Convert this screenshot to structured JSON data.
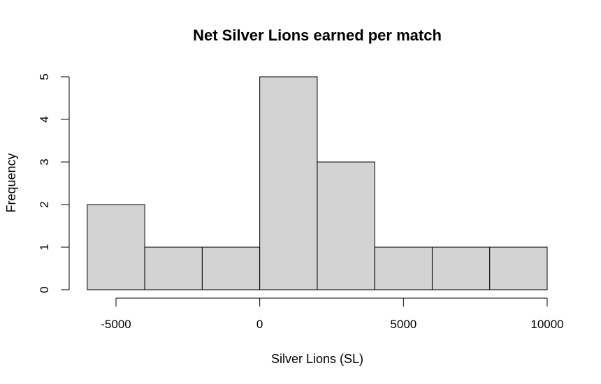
{
  "chart_data": {
    "type": "bar",
    "title": "Net Silver Lions earned per match",
    "xlabel": "Silver Lions (SL)",
    "ylabel": "Frequency",
    "bins": [
      {
        "from": -6000,
        "to": -4000,
        "count": 2
      },
      {
        "from": -4000,
        "to": -2000,
        "count": 1
      },
      {
        "from": -2000,
        "to": 0,
        "count": 1
      },
      {
        "from": 0,
        "to": 2000,
        "count": 5
      },
      {
        "from": 2000,
        "to": 4000,
        "count": 3
      },
      {
        "from": 4000,
        "to": 6000,
        "count": 1
      },
      {
        "from": 6000,
        "to": 8000,
        "count": 1
      },
      {
        "from": 8000,
        "to": 10000,
        "count": 1
      }
    ],
    "xticks": [
      -5000,
      0,
      5000,
      10000
    ],
    "yticks": [
      0,
      1,
      2,
      3,
      4,
      5
    ],
    "xlim": [
      -6000,
      10000
    ],
    "ylim": [
      0,
      5
    ],
    "bar_color": "#d3d3d3",
    "grid": false
  }
}
